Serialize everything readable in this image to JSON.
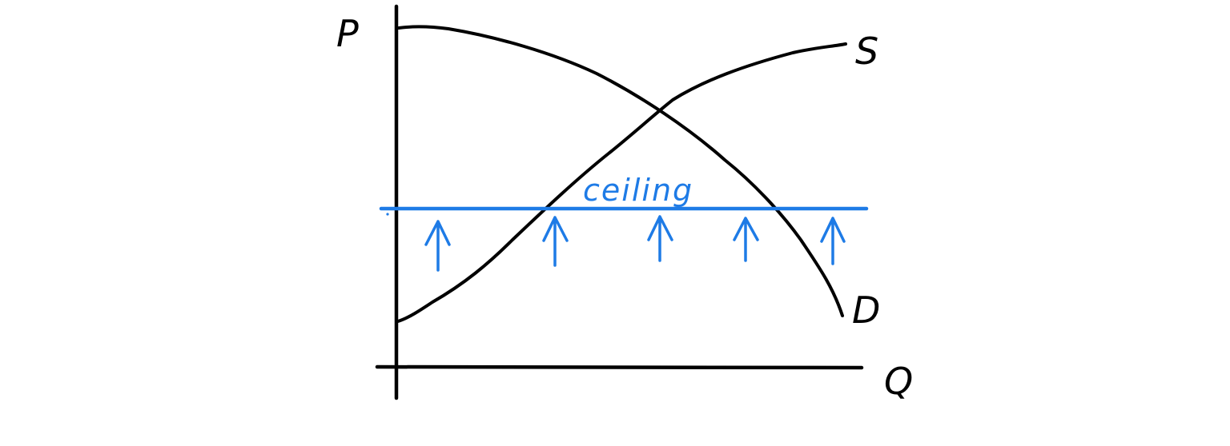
{
  "diagram": {
    "axes": {
      "y_label": "P",
      "x_label": "Q"
    },
    "curves": {
      "supply_label": "S",
      "demand_label": "D"
    },
    "ceiling": {
      "label": "ceiling",
      "color": "#1e7be6"
    },
    "arrows": {
      "count": 5,
      "direction": "up",
      "color": "#1e7be6",
      "icon": "arrow-up-icon"
    },
    "ink_color": "#000000"
  }
}
